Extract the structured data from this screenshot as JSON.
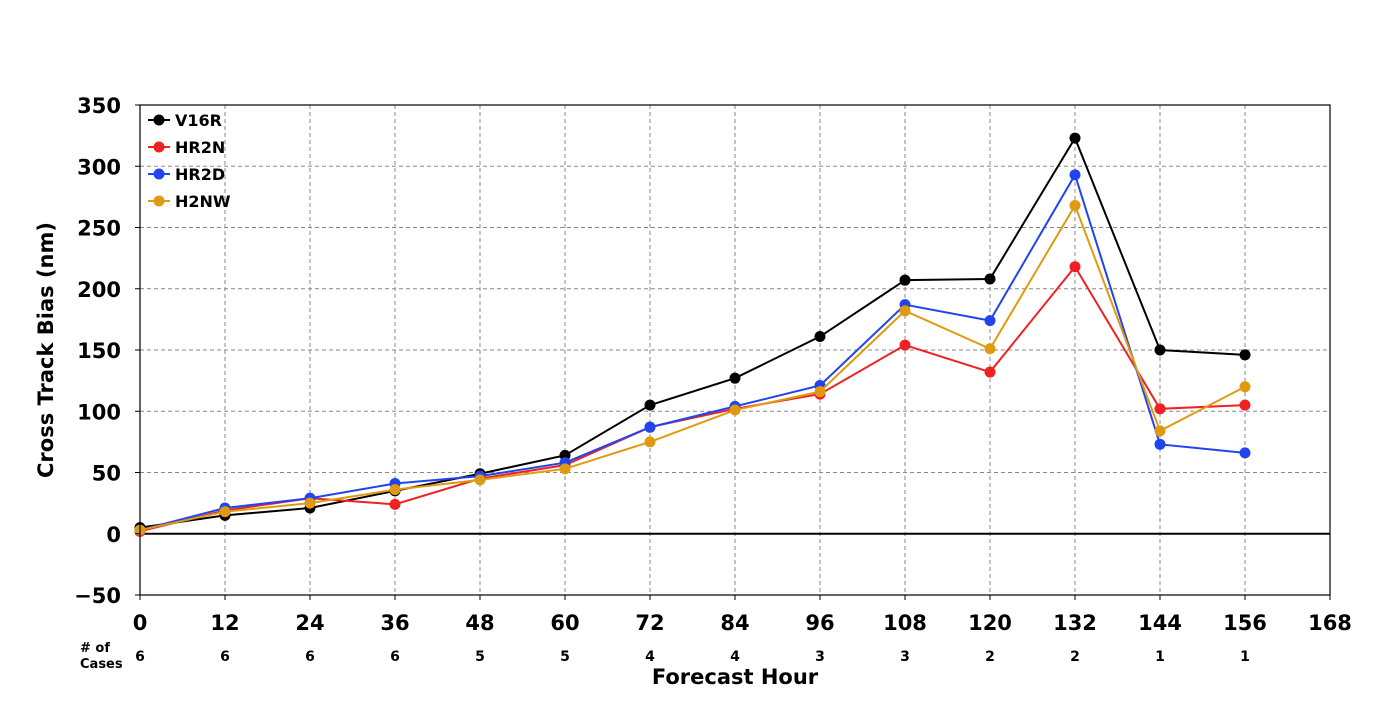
{
  "chart_data": {
    "type": "line",
    "title": "",
    "xlabel": "Forecast Hour",
    "ylabel": "Cross Track Bias (nm)",
    "xlim": [
      0,
      168
    ],
    "ylim": [
      -50,
      350
    ],
    "x_ticks": [
      0,
      12,
      24,
      36,
      48,
      60,
      72,
      84,
      96,
      108,
      120,
      132,
      144,
      156,
      168
    ],
    "y_ticks": [
      -50,
      0,
      50,
      100,
      150,
      200,
      250,
      300,
      350
    ],
    "y_tick_labels": [
      "−50",
      "0",
      "50",
      "100",
      "150",
      "200",
      "250",
      "300",
      "350"
    ],
    "grid": true,
    "legend_position": "top-left",
    "cases_header": [
      "# of",
      "Cases"
    ],
    "cases": [
      6,
      6,
      6,
      6,
      5,
      5,
      4,
      4,
      3,
      3,
      2,
      2,
      1,
      1
    ],
    "x": [
      0,
      12,
      24,
      36,
      48,
      60,
      72,
      84,
      96,
      108,
      120,
      132,
      144,
      156
    ],
    "series": [
      {
        "name": "V16R",
        "color": "#000000",
        "values": [
          5,
          15,
          21,
          35,
          49,
          64,
          105,
          127,
          161,
          207,
          208,
          323,
          150,
          146
        ]
      },
      {
        "name": "HR2N",
        "color": "#ee2222",
        "values": [
          2,
          19,
          29,
          24,
          45,
          56,
          87,
          102,
          114,
          154,
          132,
          218,
          102,
          105
        ]
      },
      {
        "name": "HR2D",
        "color": "#2244ee",
        "values": [
          3,
          21,
          29,
          41,
          47,
          58,
          87,
          104,
          121,
          187,
          174,
          293,
          73,
          66
        ]
      },
      {
        "name": "H2NW",
        "color": "#e09a10",
        "values": [
          3,
          18,
          25,
          36,
          44,
          53,
          75,
          101,
          116,
          182,
          151,
          268,
          84,
          120
        ]
      }
    ]
  }
}
